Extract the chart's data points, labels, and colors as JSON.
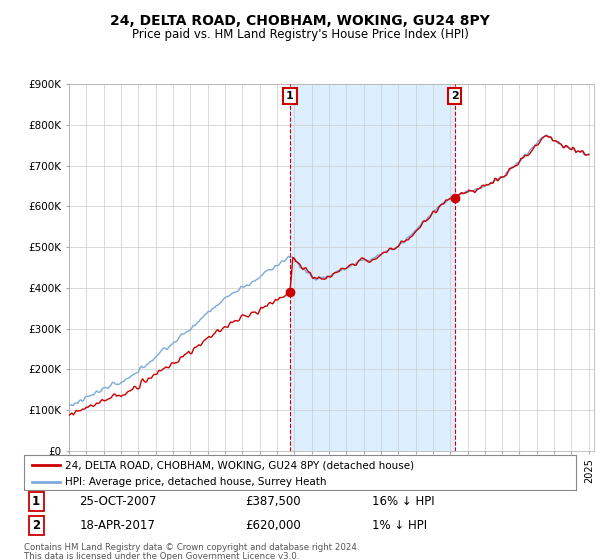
{
  "title": "24, DELTA ROAD, CHOBHAM, WOKING, GU24 8PY",
  "subtitle": "Price paid vs. HM Land Registry's House Price Index (HPI)",
  "ylim": [
    0,
    900000
  ],
  "yticks": [
    0,
    100000,
    200000,
    300000,
    400000,
    500000,
    600000,
    700000,
    800000,
    900000
  ],
  "ytick_labels": [
    "£0",
    "£100K",
    "£200K",
    "£300K",
    "£400K",
    "£500K",
    "£600K",
    "£700K",
    "£800K",
    "£900K"
  ],
  "hpi_color": "#7aabdc",
  "price_color": "#cc0000",
  "shade_color": "#ddeeff",
  "marker1_date": "25-OCT-2007",
  "marker1_price_str": "£387,500",
  "marker1_note": "16% ↓ HPI",
  "marker2_date": "18-APR-2017",
  "marker2_price_str": "£620,000",
  "marker2_note": "1% ↓ HPI",
  "legend_label1": "24, DELTA ROAD, CHOBHAM, WOKING, GU24 8PY (detached house)",
  "legend_label2": "HPI: Average price, detached house, Surrey Heath",
  "footer1": "Contains HM Land Registry data © Crown copyright and database right 2024.",
  "footer2": "This data is licensed under the Open Government Licence v3.0.",
  "background_color": "#ffffff",
  "grid_color": "#cccccc",
  "start_year": 1995,
  "end_year": 2025
}
